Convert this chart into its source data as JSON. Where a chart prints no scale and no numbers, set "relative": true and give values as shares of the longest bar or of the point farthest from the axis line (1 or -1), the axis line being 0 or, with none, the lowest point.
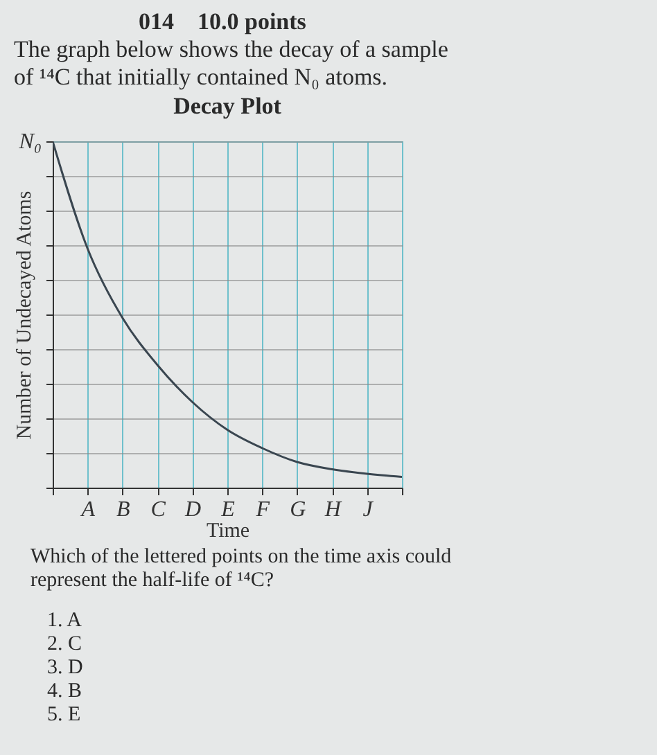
{
  "chart_data": {
    "type": "line",
    "title": "Decay Plot",
    "xlabel": "Time",
    "ylabel": "Number of Undecayed Atoms",
    "relative": true,
    "categories": [
      null,
      "A",
      "B",
      "C",
      "D",
      "E",
      "F",
      "G",
      "H",
      "J",
      null
    ],
    "values": [
      1,
      0.69,
      0.49,
      0.354,
      0.247,
      0.167,
      0.114,
      0.074,
      0.053,
      0.04,
      0.031
    ],
    "color": "#3a4650",
    "grid": true,
    "annotations": [
      "014    10.0 points",
      "The graph below shows the decay of a sample of ¹⁴C that initially contained N₀ atoms.",
      "N₀",
      "Which of the lettered points on the time axis could represent the half-life of ¹⁴C?",
      "1. A",
      "2. C",
      "3. D",
      "4. B",
      "5. E"
    ]
  }
}
